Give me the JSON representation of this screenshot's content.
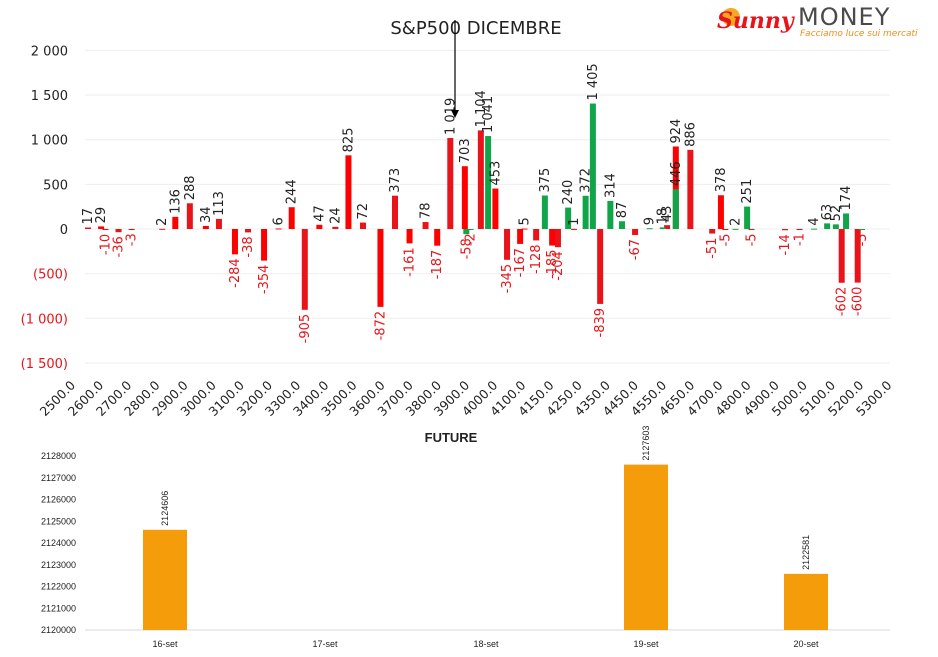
{
  "logo": {
    "word1": "Sunny",
    "word2": "MONEY",
    "tagline": "Facciamo luce sui mercati"
  },
  "chart_data": [
    {
      "type": "bar",
      "title": "S&P500 DICEMBRE",
      "ylim": [
        -1500,
        2000
      ],
      "yticks": [
        2000,
        1500,
        1000,
        500,
        0,
        -500,
        -1000,
        -1500
      ],
      "ytick_labels": [
        "2 000",
        "1 500",
        "1 000",
        "500",
        "0",
        "(500)",
        "(1 000)",
        "(1 500)"
      ],
      "grid": true,
      "categories": [
        "2500.0",
        "2600.0",
        "2700.0",
        "2800.0",
        "2900.0",
        "3000.0",
        "3100.0",
        "3200.0",
        "3300.0",
        "3400.0",
        "3500.0",
        "3600.0",
        "3700.0",
        "3800.0",
        "3900.0",
        "4000.0",
        "4100.0",
        "4150.0",
        "4250.0",
        "4350.0",
        "4450.0",
        "4550.0",
        "4650.0",
        "4700.0",
        "4800.0",
        "4900.0",
        "5000.0",
        "5100.0",
        "5200.0",
        "5300.0"
      ],
      "series": [
        {
          "color": "#e8141a",
          "values": [
            17,
            -36,
            2,
            288,
            113,
            -38,
            6,
            -905,
            24,
            72,
            373,
            78,
            1019,
            1104,
            -345,
            -128,
            -204,
            -839,
            -67,
            43,
            886,
            -51,
            -5,
            -14,
            -602,
            -600
          ],
          "labels": [
            "17",
            "-36",
            "2",
            "288",
            "113",
            "-38",
            "6",
            "-905",
            "24",
            "72",
            "373",
            "78",
            "1 019",
            "1 104",
            "-345",
            "-128",
            "-204",
            "-839",
            "-67",
            "43",
            "886",
            "-51",
            "-5",
            "-14",
            "-602",
            "-600"
          ],
          "positions": [
            0,
            1.05,
            2.55,
            3.5,
            4.5,
            5.5,
            6.55,
            7.45,
            8.5,
            9.45,
            10.55,
            11.6,
            12.45,
            13.5,
            14.4,
            15.4,
            16.15,
            17.6,
            18.8,
            19.9,
            20.7,
            21.45,
            22.8,
            23.95,
            25.9,
            26.45
          ]
        },
        {
          "color": "#ff0000",
          "values": [
            29,
            -10,
            -3,
            136,
            34,
            -284,
            -354,
            244,
            47,
            825,
            -872,
            -161,
            -187,
            703,
            453,
            -167,
            -185,
            924,
            5,
            1,
            -5,
            378,
            -1
          ],
          "labels": [
            "29",
            "-10",
            "-3",
            "136",
            "34",
            "-284",
            "-354",
            "244",
            "47",
            "825",
            "-872",
            "-161",
            "-187",
            "703",
            "453",
            "-167",
            "-185",
            "924",
            "5",
            "1",
            "-5",
            "378",
            "-1"
          ],
          "positions": [
            0.45,
            0.6,
            1.5,
            3.0,
            4.05,
            5.05,
            6.05,
            7.0,
            7.95,
            8.95,
            10.05,
            11.05,
            12.0,
            12.95,
            14.0,
            14.85,
            15.95,
            20.2,
            15.0,
            16.7,
            21.9,
            21.75,
            24.45
          ]
        },
        {
          "color": "#11a54a",
          "values": [
            -58,
            -2,
            1041,
            375,
            240,
            372,
            1405,
            314,
            87,
            9,
            18,
            446,
            2,
            251,
            4,
            63,
            52,
            174,
            -5
          ],
          "labels": [
            "-58",
            "-2",
            "1 041",
            "375",
            "240",
            "372",
            "1 405",
            "314",
            "87",
            "9",
            "18",
            "446",
            "2",
            "251",
            "4",
            "63",
            "52",
            "174",
            "-5"
          ],
          "positions": [
            13.0,
            13.15,
            13.75,
            15.7,
            16.5,
            17.1,
            17.35,
            17.95,
            18.35,
            19.3,
            19.75,
            20.2,
            22.25,
            22.65,
            24.95,
            25.4,
            25.7,
            26.05,
            26.6
          ]
        }
      ],
      "annotations": [
        {
          "type": "arrow",
          "label": ""
        }
      ]
    },
    {
      "type": "bar",
      "title": "FUTURE",
      "categories": [
        "16-set",
        "17-set",
        "18-set",
        "19-set",
        "20-set"
      ],
      "values": [
        2124606,
        null,
        null,
        2127603,
        2122581
      ],
      "labels": [
        "2124606",
        "",
        "",
        "2127603",
        "2122581"
      ],
      "ylim": [
        2120000,
        2128000
      ],
      "yticks": [
        2128000,
        2127000,
        2126000,
        2125000,
        2124000,
        2123000,
        2122000,
        2121000,
        2120000
      ],
      "color": "#f59c0b",
      "grid": false
    }
  ]
}
